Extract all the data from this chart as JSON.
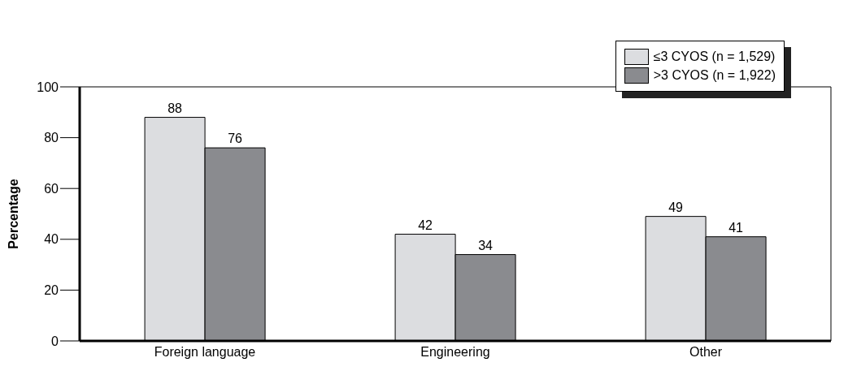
{
  "chart_data": {
    "type": "bar",
    "ylabel": "Percentage",
    "categories": [
      "Foreign language",
      "Engineering",
      "Other"
    ],
    "series": [
      {
        "name": "≤3 CYOS (n = 1,529)",
        "color": "#dcdde0",
        "values": [
          88,
          42,
          49
        ]
      },
      {
        "name": ">3 CYOS (n = 1,922)",
        "color": "#8a8b8f",
        "values": [
          76,
          34,
          41
        ]
      }
    ],
    "ylim": [
      0,
      100
    ],
    "yticks": [
      0,
      20,
      40,
      60,
      80,
      100
    ],
    "grid": false,
    "legend": "top right",
    "data_labels": true
  }
}
